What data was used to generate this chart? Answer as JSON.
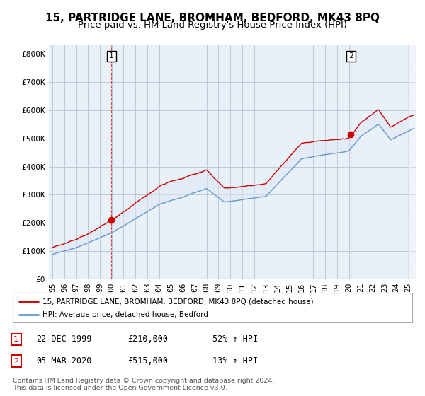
{
  "title": "15, PARTRIDGE LANE, BROMHAM, BEDFORD, MK43 8PQ",
  "subtitle": "Price paid vs. HM Land Registry's House Price Index (HPI)",
  "ylabel_ticks": [
    "£0",
    "£100K",
    "£200K",
    "£300K",
    "£400K",
    "£500K",
    "£600K",
    "£700K",
    "£800K"
  ],
  "ytick_values": [
    0,
    100000,
    200000,
    300000,
    400000,
    500000,
    600000,
    700000,
    800000
  ],
  "ylim": [
    0,
    830000
  ],
  "xlim_start": 1994.7,
  "xlim_end": 2025.7,
  "xticks": [
    1995,
    1996,
    1997,
    1998,
    1999,
    2000,
    2001,
    2002,
    2003,
    2004,
    2005,
    2006,
    2007,
    2008,
    2009,
    2010,
    2011,
    2012,
    2013,
    2014,
    2015,
    2016,
    2017,
    2018,
    2019,
    2020,
    2021,
    2022,
    2023,
    2024,
    2025
  ],
  "sale1_date": 1999.97,
  "sale1_price": 210000,
  "sale2_date": 2020.17,
  "sale2_price": 515000,
  "legend_line1": "15, PARTRIDGE LANE, BROMHAM, BEDFORD, MK43 8PQ (detached house)",
  "legend_line2": "HPI: Average price, detached house, Bedford",
  "table_row1": [
    "1",
    "22-DEC-1999",
    "£210,000",
    "52% ↑ HPI"
  ],
  "table_row2": [
    "2",
    "05-MAR-2020",
    "£515,000",
    "13% ↑ HPI"
  ],
  "footer": "Contains HM Land Registry data © Crown copyright and database right 2024.\nThis data is licensed under the Open Government Licence v3.0.",
  "line_color_red": "#cc0000",
  "line_color_blue": "#6699cc",
  "fill_color_blue": "#dde8f5",
  "bg_color": "#e8f0f8",
  "grid_color": "#c0c8d8",
  "title_fontsize": 11,
  "subtitle_fontsize": 9.5,
  "tick_fontsize": 8
}
